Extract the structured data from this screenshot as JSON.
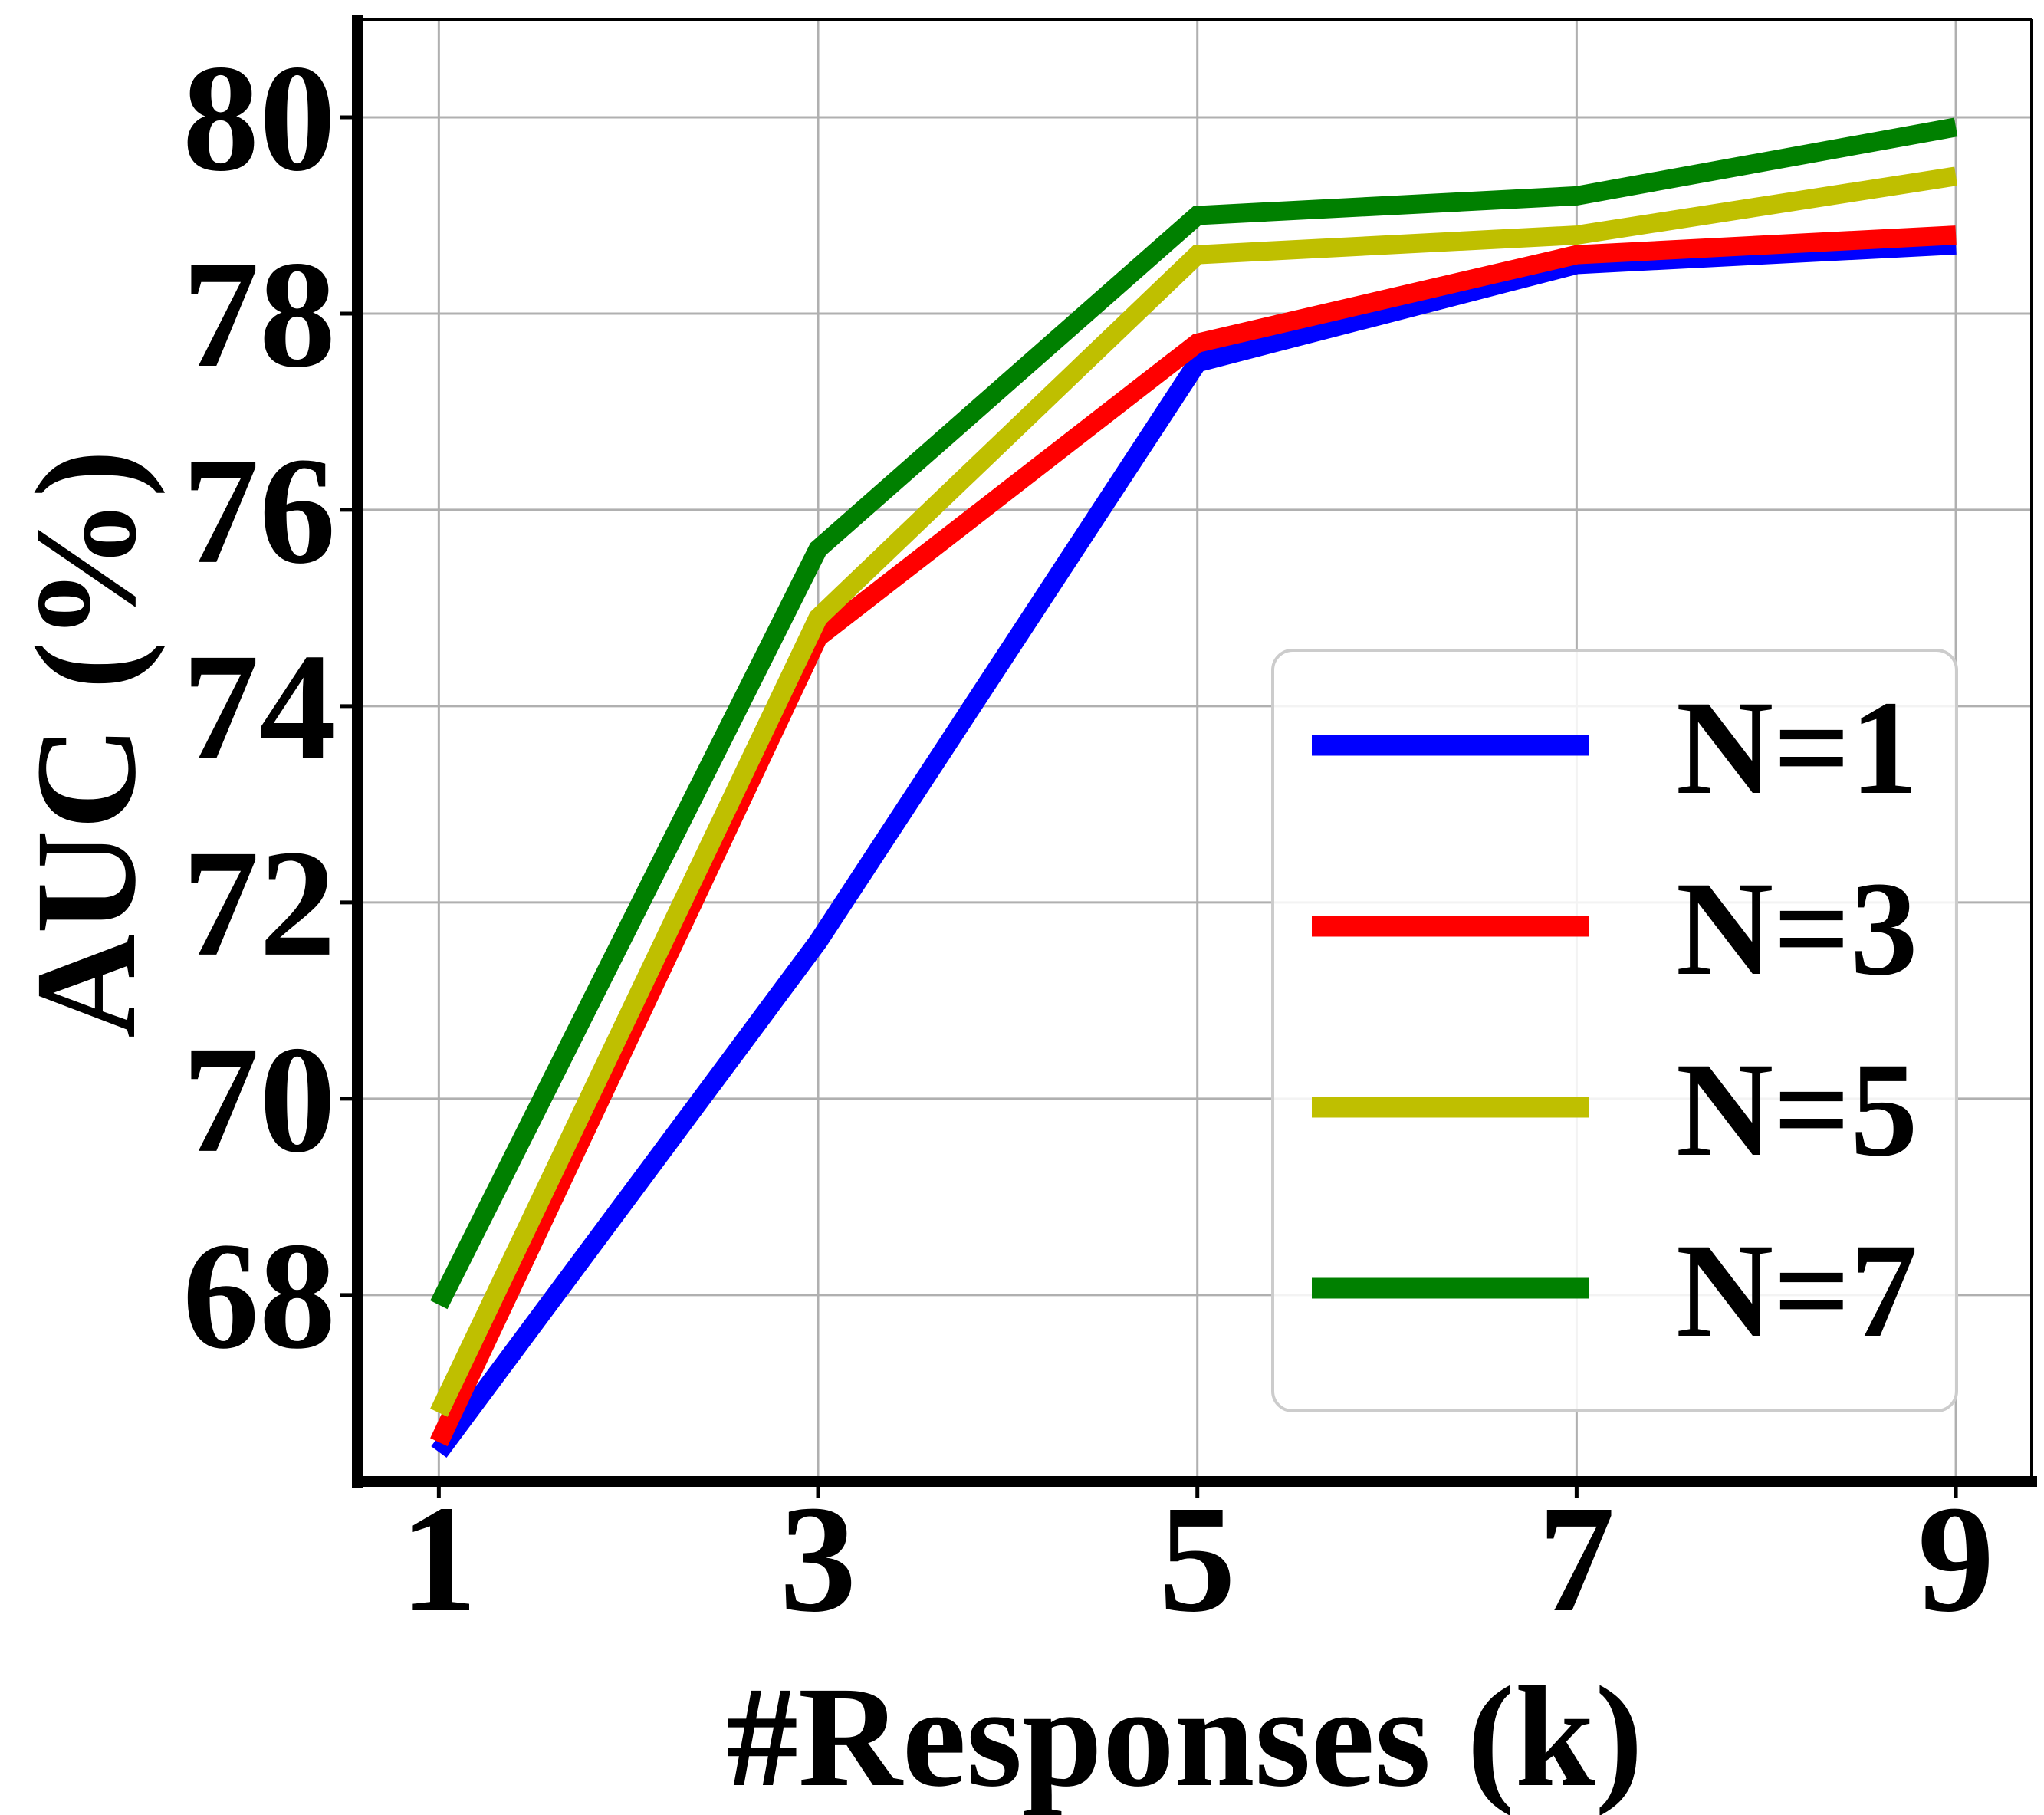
{
  "chart_data": {
    "type": "line",
    "xlabel": "#Responses (k)",
    "ylabel": "AUC (%)",
    "x": [
      1,
      3,
      5,
      7,
      9
    ],
    "xticks": [
      "1",
      "3",
      "5",
      "7",
      "9"
    ],
    "yticks": [
      "68",
      "70",
      "72",
      "74",
      "76",
      "78",
      "80"
    ],
    "xlim": [
      0.57,
      9.4
    ],
    "ylim": [
      66.1,
      81.0
    ],
    "grid": true,
    "legend_position": "lower-right",
    "series": [
      {
        "name": "N=1",
        "color": "#0000ff",
        "values": [
          66.4,
          71.6,
          77.5,
          78.5,
          78.7
        ]
      },
      {
        "name": "N=3",
        "color": "#ff0000",
        "values": [
          66.5,
          74.7,
          77.7,
          78.6,
          78.8
        ]
      },
      {
        "name": "N=5",
        "color": "#bfbf00",
        "values": [
          66.8,
          74.9,
          78.6,
          78.8,
          79.4
        ]
      },
      {
        "name": "N=7",
        "color": "#008000",
        "values": [
          67.9,
          75.6,
          79.0,
          79.2,
          79.9
        ]
      }
    ]
  }
}
